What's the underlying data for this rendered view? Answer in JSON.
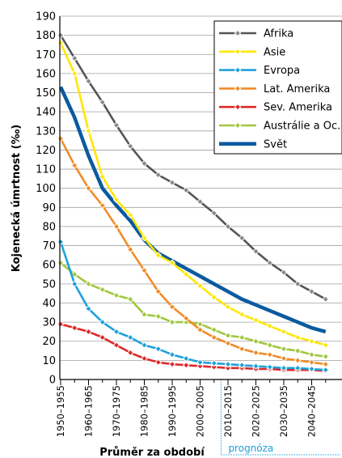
{
  "chart_data": {
    "type": "line",
    "xlabel": "Průměr za období",
    "ylabel": "Kojenecká úmrtnost (‰)",
    "ylim": [
      0,
      190
    ],
    "yticks": [
      0,
      10,
      20,
      30,
      40,
      50,
      60,
      70,
      80,
      90,
      100,
      110,
      120,
      130,
      140,
      150,
      160,
      170,
      180,
      190
    ],
    "grid": "horizontal",
    "legend_position": "top-right",
    "forecast_label": "prognóza",
    "forecast_start": "2010–2015",
    "x": [
      "1950–1955",
      "1955–1960",
      "1960–1965",
      "1965–1970",
      "1970–1975",
      "1975–1980",
      "1980–1985",
      "1985–1990",
      "1990–1995",
      "1995–2000",
      "2000–2005",
      "2005–2010",
      "2010–2015",
      "2015–2020",
      "2020–2025",
      "2025–2030",
      "2030–2035",
      "2035–2040",
      "2040–2045",
      "2045–2050"
    ],
    "x_tick_labels": [
      "1950–1955",
      "1960–1965",
      "1970–1975",
      "1980–1985",
      "1990–1995",
      "2000–2005",
      "2010–2015",
      "2020–2025",
      "2030–2035",
      "2040–2045"
    ],
    "series": [
      {
        "name": "Afrika",
        "color": "#555555",
        "marker": "#888888",
        "markers": true,
        "values": [
          180,
          168,
          156,
          145,
          133,
          122,
          113,
          107,
          103,
          99,
          93,
          87,
          80,
          74,
          67,
          61,
          56,
          50,
          46,
          42
        ]
      },
      {
        "name": "Asie",
        "color": "#ffe600",
        "marker": "#ffe600",
        "markers": true,
        "values": [
          176,
          160,
          130,
          106,
          94,
          86,
          74,
          65,
          61,
          55,
          49,
          43,
          38,
          34,
          31,
          28,
          25,
          22,
          20,
          18
        ]
      },
      {
        "name": "Evropa",
        "color": "#1ea0dc",
        "marker": "#1ea0dc",
        "markers": true,
        "values": [
          72,
          50,
          37,
          30,
          25,
          22,
          18,
          16,
          13,
          11,
          9,
          8.5,
          8,
          7.5,
          7,
          6.5,
          6,
          6,
          5.5,
          5
        ]
      },
      {
        "name": "Lat. Amerika",
        "color": "#f08c28",
        "marker": "#f08c28",
        "markers": true,
        "values": [
          126,
          112,
          100,
          91,
          80,
          68,
          57,
          46,
          38,
          32,
          26,
          22,
          19,
          16,
          14,
          13,
          11,
          10,
          9,
          8
        ]
      },
      {
        "name": "Sev. Amerika",
        "color": "#dc2828",
        "marker": "#dc2828",
        "markers": true,
        "values": [
          29,
          27,
          25,
          22,
          18,
          14,
          11,
          9,
          8,
          7.5,
          7,
          6.5,
          6,
          6,
          5.5,
          5.5,
          5,
          5,
          5,
          4.5
        ]
      },
      {
        "name": "Austrálie a Oc.",
        "color": "#a0c83c",
        "marker": "#a0c83c",
        "markers": true,
        "values": [
          61,
          55,
          50,
          47,
          44,
          42,
          34,
          33,
          30,
          30,
          29,
          26,
          23,
          22,
          20,
          18,
          16,
          15,
          13,
          12
        ]
      },
      {
        "name": "Svět",
        "color": "#0a5aa0",
        "marker": "#0a5aa0",
        "markers": false,
        "values": [
          153,
          137,
          117,
          100,
          91,
          83,
          73,
          66,
          62,
          58,
          54,
          50,
          46,
          42,
          39,
          36,
          33,
          30,
          27,
          25
        ]
      }
    ]
  }
}
